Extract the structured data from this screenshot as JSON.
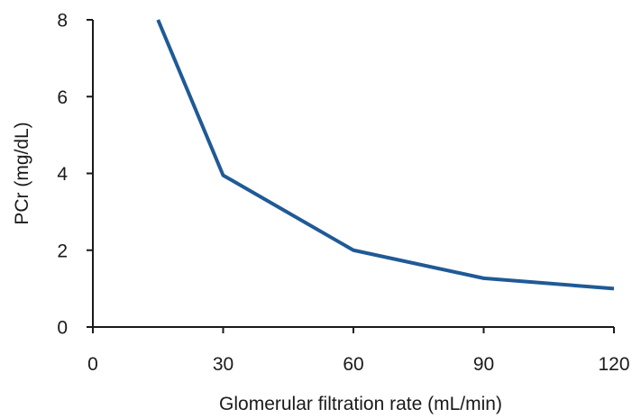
{
  "chart_data": {
    "type": "line",
    "title": "",
    "xlabel": "Glomerular filtration rate (mL/min)",
    "ylabel": "PCr (mg/dL)",
    "xlim": [
      0,
      120
    ],
    "ylim": [
      0,
      8
    ],
    "xticks": [
      0,
      30,
      60,
      90,
      120
    ],
    "yticks": [
      0,
      2,
      4,
      6,
      8
    ],
    "xtick_labels": [
      "0",
      "30",
      "60",
      "90",
      "120"
    ],
    "ytick_labels": [
      "0",
      "2",
      "4",
      "6",
      "8"
    ],
    "grid": false,
    "legend": "none",
    "series": [
      {
        "color": "#1f5a96",
        "x": [
          15,
          30,
          60,
          90,
          120
        ],
        "y": [
          8,
          3.95,
          2,
          1.27,
          1
        ]
      }
    ]
  }
}
